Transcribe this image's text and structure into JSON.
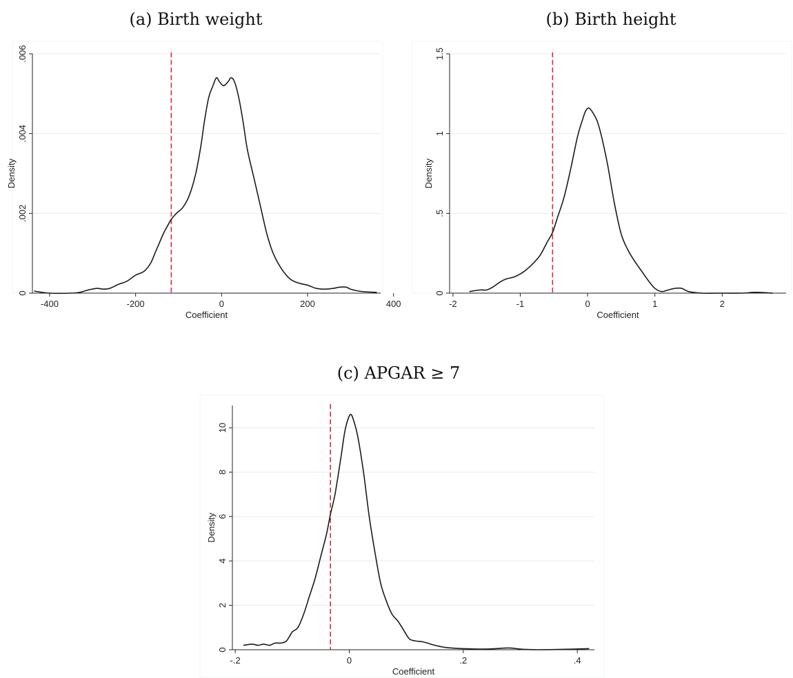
{
  "colors": {
    "curve": "#1a1a1a",
    "reference_line": "#d6283b",
    "grid": "#e3ecec",
    "axis": "#222222"
  },
  "chart_data": [
    {
      "type": "line",
      "title": "(a) Birth weight",
      "xlabel": "Coefficient",
      "ylabel": "Density",
      "xlim": [
        -440,
        370
      ],
      "ylim": [
        0,
        0.006
      ],
      "xticks": [
        -400,
        -200,
        0,
        200,
        400
      ],
      "xtick_labels": [
        "-400",
        "-200",
        "0",
        "200",
        "400"
      ],
      "yticks": [
        0,
        0.002,
        0.004,
        0.006
      ],
      "ytick_labels": [
        "0",
        ".002",
        ".004",
        ".006"
      ],
      "grid": true,
      "reference_line_x": -117,
      "series": [
        {
          "x": [
            -435,
            -400,
            -350,
            -330,
            -310,
            -290,
            -275,
            -260,
            -240,
            -220,
            -200,
            -180,
            -165,
            -155,
            -145,
            -135,
            -125,
            -117,
            -105,
            -90,
            -75,
            -60,
            -48,
            -40,
            -30,
            -20,
            -12,
            -5,
            5,
            15,
            22,
            30,
            40,
            50,
            60,
            75,
            90,
            105,
            120,
            140,
            160,
            180,
            200,
            220,
            240,
            260,
            275,
            290,
            300,
            320,
            340,
            360
          ],
          "y": [
            5e-05,
            0.0,
            0.0,
            2e-05,
            8e-05,
            0.00012,
            0.0001,
            0.00012,
            0.00022,
            0.0003,
            0.00045,
            0.00055,
            0.00075,
            0.001,
            0.00125,
            0.0015,
            0.0017,
            0.00185,
            0.002,
            0.00215,
            0.00245,
            0.003,
            0.0037,
            0.0043,
            0.0049,
            0.0052,
            0.0054,
            0.0053,
            0.0052,
            0.0053,
            0.0054,
            0.0053,
            0.0049,
            0.0043,
            0.0036,
            0.0029,
            0.0022,
            0.0015,
            0.001,
            0.0006,
            0.00035,
            0.00025,
            0.0002,
            0.00012,
            0.0001,
            0.00012,
            0.00015,
            0.00015,
            0.0001,
            5e-05,
            3e-05,
            2e-05
          ]
        }
      ]
    },
    {
      "type": "line",
      "title": "(b) Birth height",
      "xlabel": "Coefficient",
      "ylabel": "Density",
      "xlim": [
        -2.05,
        2.95
      ],
      "ylim": [
        0,
        1.5
      ],
      "xticks": [
        -2,
        -1,
        0,
        1,
        2
      ],
      "xtick_labels": [
        "-2",
        "-1",
        "0",
        "1",
        "2"
      ],
      "yticks": [
        0,
        0.5,
        1,
        1.5
      ],
      "ytick_labels": [
        "0",
        ".5",
        "1",
        "1.5"
      ],
      "grid": true,
      "reference_line_x": -0.52,
      "series": [
        {
          "x": [
            -1.75,
            -1.6,
            -1.5,
            -1.4,
            -1.3,
            -1.2,
            -1.1,
            -1.0,
            -0.9,
            -0.8,
            -0.7,
            -0.6,
            -0.52,
            -0.45,
            -0.35,
            -0.25,
            -0.15,
            -0.08,
            -0.03,
            0.02,
            0.08,
            0.15,
            0.22,
            0.3,
            0.4,
            0.5,
            0.6,
            0.7,
            0.8,
            0.9,
            1.0,
            1.1,
            1.2,
            1.3,
            1.4,
            1.5,
            1.7,
            2.0,
            2.3,
            2.5,
            2.75
          ],
          "y": [
            0.01,
            0.02,
            0.02,
            0.04,
            0.07,
            0.09,
            0.1,
            0.12,
            0.15,
            0.19,
            0.24,
            0.32,
            0.38,
            0.47,
            0.6,
            0.78,
            0.98,
            1.08,
            1.14,
            1.16,
            1.13,
            1.07,
            0.96,
            0.8,
            0.56,
            0.37,
            0.27,
            0.2,
            0.14,
            0.08,
            0.03,
            0.01,
            0.02,
            0.03,
            0.03,
            0.01,
            0.0,
            0.0,
            0.0,
            0.005,
            0.0
          ]
        }
      ]
    },
    {
      "type": "line",
      "title": "(c) APGAR ≥ 7",
      "xlabel": "Coefficient",
      "ylabel": "Density",
      "xlim": [
        -0.205,
        0.43
      ],
      "ylim": [
        0,
        11
      ],
      "xticks": [
        -0.2,
        0,
        0.2,
        0.4
      ],
      "xtick_labels": [
        "-.2",
        "0",
        ".2",
        ".4"
      ],
      "yticks": [
        0,
        2,
        4,
        6,
        8,
        10
      ],
      "ytick_labels": [
        "0",
        "2",
        "4",
        "6",
        "8",
        "10"
      ],
      "grid": true,
      "reference_line_x": -0.033,
      "series": [
        {
          "x": [
            -0.185,
            -0.17,
            -0.16,
            -0.15,
            -0.14,
            -0.13,
            -0.12,
            -0.11,
            -0.1,
            -0.09,
            -0.08,
            -0.07,
            -0.06,
            -0.05,
            -0.04,
            -0.033,
            -0.025,
            -0.015,
            -0.008,
            -0.002,
            0.003,
            0.008,
            0.015,
            0.025,
            0.035,
            0.045,
            0.055,
            0.065,
            0.075,
            0.085,
            0.095,
            0.105,
            0.115,
            0.13,
            0.15,
            0.17,
            0.2,
            0.24,
            0.28,
            0.3,
            0.33,
            0.38,
            0.42
          ],
          "y": [
            0.2,
            0.25,
            0.2,
            0.25,
            0.2,
            0.3,
            0.3,
            0.4,
            0.8,
            1.0,
            1.6,
            2.4,
            3.2,
            4.2,
            5.2,
            6.1,
            7.0,
            8.6,
            9.8,
            10.4,
            10.6,
            10.3,
            9.6,
            8.0,
            6.0,
            4.4,
            3.0,
            2.2,
            1.6,
            1.3,
            0.9,
            0.5,
            0.4,
            0.35,
            0.2,
            0.1,
            0.05,
            0.03,
            0.08,
            0.03,
            0.0,
            0.02,
            0.05
          ]
        }
      ]
    }
  ]
}
